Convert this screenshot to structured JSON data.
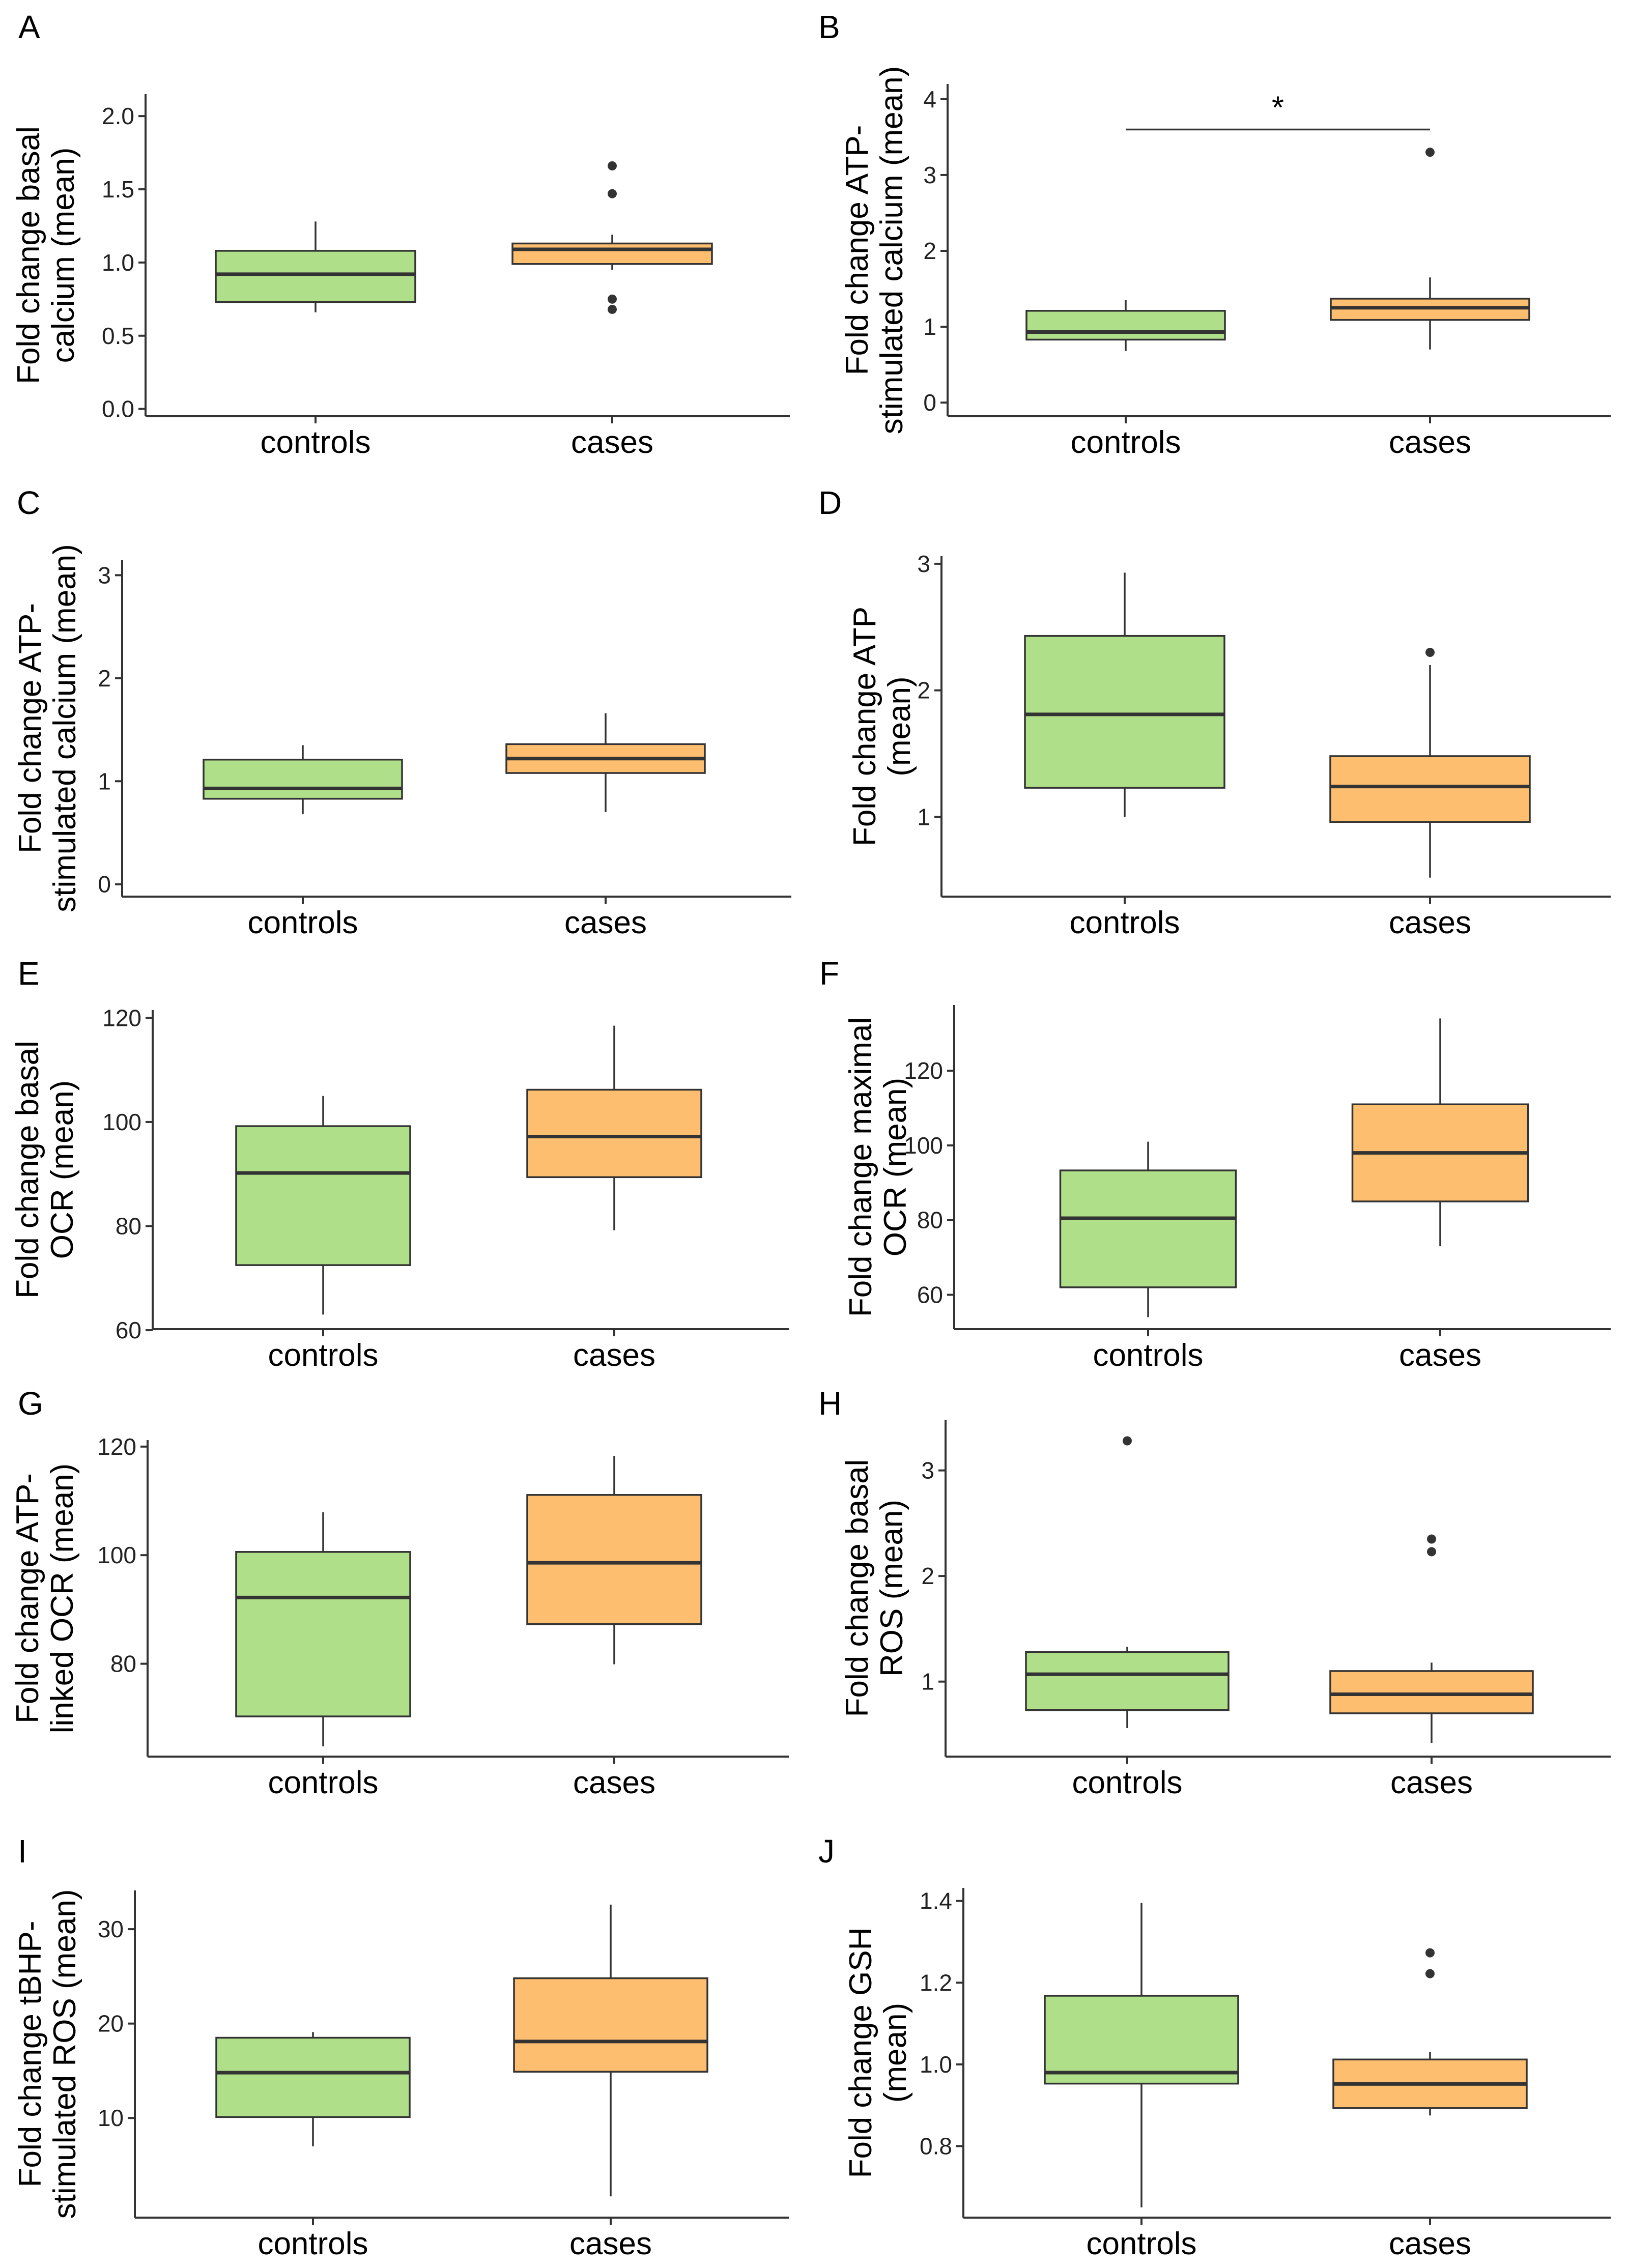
{
  "colors": {
    "controls": "#b0df8a",
    "cases": "#fdbe6f",
    "stroke": "#333333",
    "axis": "#333333"
  },
  "chart_data": [
    {
      "type": "boxplot",
      "panel": "A",
      "ylabel": [
        "Fold change basal",
        "calcium (mean)"
      ],
      "categories": [
        "controls",
        "cases"
      ],
      "ylim": [
        -0.05,
        2.15
      ],
      "yticks": [
        0.0,
        0.5,
        1.0,
        1.5,
        2.0
      ],
      "tick_labels": [
        "0.0",
        "0.5",
        "1.0",
        "1.5",
        "2.0"
      ],
      "boxes": [
        {
          "whisker_low": 0.66,
          "q1": 0.73,
          "median": 0.92,
          "q3": 1.08,
          "whisker_high": 1.28,
          "outliers": []
        },
        {
          "whisker_low": 0.95,
          "q1": 0.99,
          "median": 1.09,
          "q3": 1.13,
          "whisker_high": 1.19,
          "outliers": [
            1.66,
            1.47,
            0.75,
            0.68
          ]
        }
      ]
    },
    {
      "type": "boxplot",
      "panel": "B",
      "ylabel": [
        "Fold change ATP-",
        "stimulated calcium (mean)"
      ],
      "categories": [
        "controls",
        "cases"
      ],
      "ylim": [
        -0.18,
        4.2
      ],
      "yticks": [
        0,
        1,
        2,
        3,
        4
      ],
      "tick_labels": [
        "0",
        "1",
        "2",
        "3",
        "4"
      ],
      "boxes": [
        {
          "whisker_low": 0.68,
          "q1": 0.83,
          "median": 0.93,
          "q3": 1.21,
          "whisker_high": 1.35,
          "outliers": []
        },
        {
          "whisker_low": 0.7,
          "q1": 1.09,
          "median": 1.25,
          "q3": 1.37,
          "whisker_high": 1.65,
          "outliers": [
            3.3
          ]
        }
      ],
      "significance": {
        "label": "*",
        "y": 3.6
      }
    },
    {
      "type": "boxplot",
      "panel": "C",
      "ylabel": [
        "Fold change ATP-",
        "stimulated calcium (mean)"
      ],
      "categories": [
        "controls",
        "cases"
      ],
      "ylim": [
        -0.12,
        3.15
      ],
      "yticks": [
        0,
        1,
        2,
        3
      ],
      "tick_labels": [
        "0",
        "1",
        "2",
        "3"
      ],
      "boxes": [
        {
          "whisker_low": 0.68,
          "q1": 0.83,
          "median": 0.93,
          "q3": 1.21,
          "whisker_high": 1.35,
          "outliers": []
        },
        {
          "whisker_low": 0.7,
          "q1": 1.08,
          "median": 1.22,
          "q3": 1.36,
          "whisker_high": 1.66,
          "outliers": []
        }
      ]
    },
    {
      "type": "boxplot",
      "panel": "D",
      "ylabel": [
        "Fold change ATP",
        "(mean)"
      ],
      "categories": [
        "controls",
        "cases"
      ],
      "ylim": [
        0.37,
        3.06
      ],
      "yticks": [
        1,
        2,
        3
      ],
      "tick_labels": [
        "1",
        "2",
        "3"
      ],
      "boxes": [
        {
          "whisker_low": 1.0,
          "q1": 1.23,
          "median": 1.81,
          "q3": 2.43,
          "whisker_high": 2.93,
          "outliers": []
        },
        {
          "whisker_low": 0.52,
          "q1": 0.96,
          "median": 1.24,
          "q3": 1.48,
          "whisker_high": 2.2,
          "outliers": [
            2.3
          ]
        }
      ]
    },
    {
      "type": "boxplot",
      "panel": "E",
      "ylabel": [
        "Fold change basal",
        "OCR (mean)"
      ],
      "categories": [
        "controls",
        "cases"
      ],
      "ylim": [
        60.2,
        121.5
      ],
      "yticks": [
        60,
        80,
        100,
        120
      ],
      "tick_labels": [
        "60",
        "80",
        "100",
        "120"
      ],
      "boxes": [
        {
          "whisker_low": 63,
          "q1": 72.5,
          "median": 90.2,
          "q3": 99.2,
          "whisker_high": 105,
          "outliers": []
        },
        {
          "whisker_low": 79.2,
          "q1": 89.4,
          "median": 97.2,
          "q3": 106.2,
          "whisker_high": 118.5,
          "outliers": []
        }
      ]
    },
    {
      "type": "boxplot",
      "panel": "F",
      "ylabel": [
        "Fold change maximal",
        "OCR (mean)"
      ],
      "categories": [
        "controls",
        "cases"
      ],
      "ylim": [
        50.8,
        137.6
      ],
      "yticks": [
        60,
        80,
        100,
        120
      ],
      "tick_labels": [
        "60",
        "80",
        "100",
        "120"
      ],
      "boxes": [
        {
          "whisker_low": 54,
          "q1": 62,
          "median": 80.5,
          "q3": 93.3,
          "whisker_high": 101,
          "outliers": []
        },
        {
          "whisker_low": 73,
          "q1": 85,
          "median": 98,
          "q3": 111,
          "whisker_high": 134,
          "outliers": []
        }
      ]
    },
    {
      "type": "boxplot",
      "panel": "G",
      "ylabel": [
        "Fold change ATP-",
        "linked OCR (mean)"
      ],
      "categories": [
        "controls",
        "cases"
      ],
      "ylim": [
        62.9,
        121.2
      ],
      "yticks": [
        80,
        100,
        120
      ],
      "tick_labels": [
        "80",
        "100",
        "120"
      ],
      "boxes": [
        {
          "whisker_low": 64.8,
          "q1": 70.3,
          "median": 92.2,
          "q3": 100.6,
          "whisker_high": 107.9,
          "outliers": []
        },
        {
          "whisker_low": 79.9,
          "q1": 87.3,
          "median": 98.6,
          "q3": 111.1,
          "whisker_high": 118.3,
          "outliers": []
        }
      ]
    },
    {
      "type": "boxplot",
      "panel": "H",
      "ylabel": [
        "Fold change basal",
        "ROS (mean)"
      ],
      "categories": [
        "controls",
        "cases"
      ],
      "ylim": [
        0.29,
        3.48
      ],
      "yticks": [
        1,
        2,
        3
      ],
      "tick_labels": [
        "1",
        "2",
        "3"
      ],
      "boxes": [
        {
          "whisker_low": 0.56,
          "q1": 0.73,
          "median": 1.07,
          "q3": 1.28,
          "whisker_high": 1.33,
          "outliers": [
            3.28
          ]
        },
        {
          "whisker_low": 0.42,
          "q1": 0.7,
          "median": 0.88,
          "q3": 1.1,
          "whisker_high": 1.18,
          "outliers": [
            2.35,
            2.23
          ]
        }
      ]
    },
    {
      "type": "boxplot",
      "panel": "I",
      "ylabel": [
        "Fold change tBHP-",
        "stimulated ROS (mean)"
      ],
      "categories": [
        "controls",
        "cases"
      ],
      "ylim": [
        -0.55,
        34.1
      ],
      "yticks": [
        10,
        20,
        30
      ],
      "tick_labels": [
        "10",
        "20",
        "30"
      ],
      "boxes": [
        {
          "whisker_low": 7.0,
          "q1": 10.1,
          "median": 14.8,
          "q3": 18.5,
          "whisker_high": 19.1,
          "outliers": []
        },
        {
          "whisker_low": 1.7,
          "q1": 14.9,
          "median": 18.1,
          "q3": 24.8,
          "whisker_high": 32.6,
          "outliers": []
        }
      ]
    },
    {
      "type": "boxplot",
      "panel": "J",
      "ylabel": [
        "Fold change GSH",
        "(mean)"
      ],
      "categories": [
        "controls",
        "cases"
      ],
      "ylim": [
        0.625,
        1.432
      ],
      "yticks": [
        0.8,
        1.0,
        1.2,
        1.4
      ],
      "tick_labels": [
        "0.8",
        "1.0",
        "1.2",
        "1.4"
      ],
      "boxes": [
        {
          "whisker_low": 0.65,
          "q1": 0.953,
          "median": 0.98,
          "q3": 1.168,
          "whisker_high": 1.395,
          "outliers": []
        },
        {
          "whisker_low": 0.875,
          "q1": 0.893,
          "median": 0.952,
          "q3": 1.012,
          "whisker_high": 1.03,
          "outliers": [
            1.273,
            1.222
          ]
        }
      ]
    }
  ]
}
